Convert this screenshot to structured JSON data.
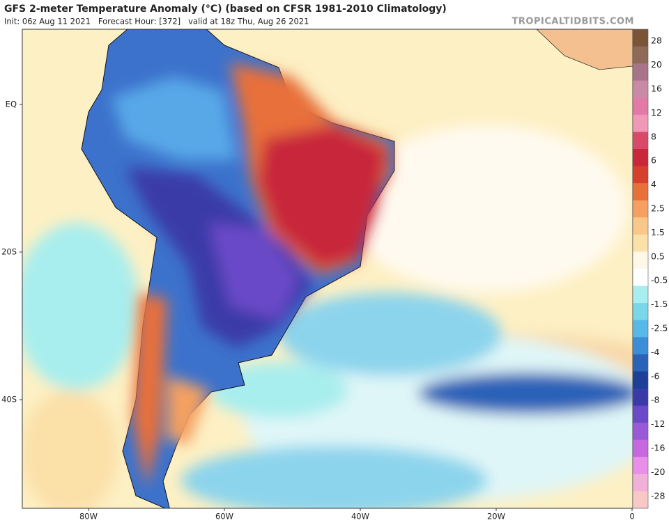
{
  "header": {
    "title": "GFS 2-meter Temperature Anomaly (°C) (based on CFSR 1981-2010 Climatology)",
    "subtitle": "Init: 06z Aug 11 2021   Forecast Hour: [372]   valid at 18z Thu, Aug 26 2021",
    "site": "TROPICALTIDBITS.COM"
  },
  "map": {
    "lat_labels": [
      "EQ",
      "20S",
      "40S"
    ],
    "lon_labels": [
      "80W",
      "60W",
      "40W",
      "20W",
      "0"
    ]
  },
  "legend": {
    "labels": [
      "28",
      "20",
      "16",
      "12",
      "8",
      "6",
      "4",
      "2.5",
      "1.5",
      "0.5",
      "-0.5",
      "-1.5",
      "-2.5",
      "-4",
      "-6",
      "-8",
      "-12",
      "-16",
      "-20",
      "-28"
    ],
    "colors": [
      "#7a5436",
      "#8e6a58",
      "#a8748a",
      "#c98aa8",
      "#e27aa8",
      "#f098b8",
      "#d94a6a",
      "#c8283a",
      "#d8402e",
      "#e8703a",
      "#f5a060",
      "#f8c88a",
      "#fbe0a8",
      "#fff8e8",
      "#ffffff",
      "#a8eeee",
      "#78d8e8",
      "#58b8e8",
      "#3c8ed8",
      "#2a62b8",
      "#1e3e98",
      "#3a3aa8",
      "#6a4ac8",
      "#9a5ad8",
      "#c868e0",
      "#e890e8",
      "#f0b0d8",
      "#f8c8c8"
    ]
  }
}
